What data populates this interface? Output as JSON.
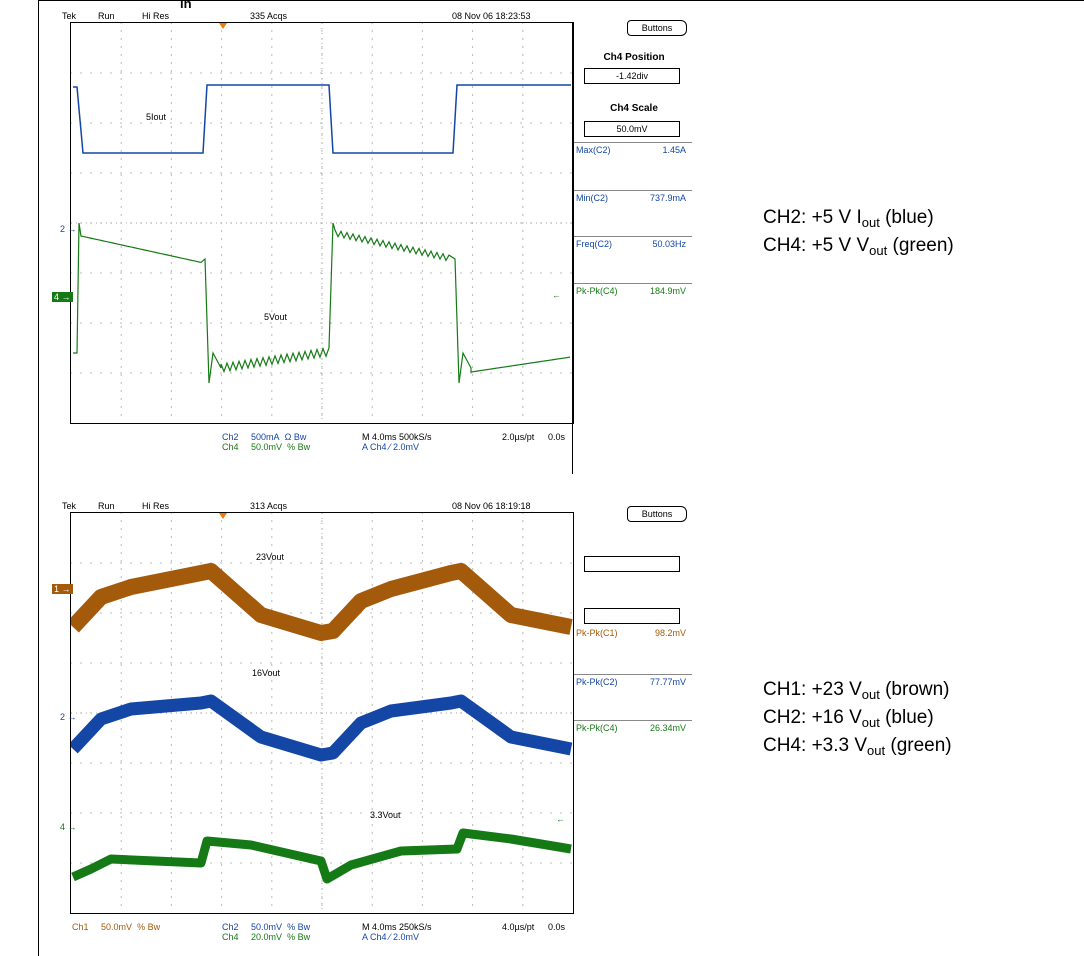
{
  "top_header_fragment": "in",
  "scope1": {
    "brand": "Tek",
    "mode": "Run",
    "acq_mode": "Hi Res",
    "acqs": "335 Acqs",
    "datetime": "08 Nov 06 18:23:53",
    "buttons_label": "Buttons",
    "ch4_position_title": "Ch4 Position",
    "ch4_position_value": "-1.42div",
    "ch4_scale_title": "Ch4 Scale",
    "ch4_scale_value": "50.0mV",
    "measurements": [
      {
        "label": "Max(C2)",
        "value": "1.45A",
        "color": "blue"
      },
      {
        "label": "Min(C2)",
        "value": "737.9mA",
        "color": "blue"
      },
      {
        "label": "Freq(C2)",
        "value": "50.03Hz",
        "color": "blue"
      },
      {
        "label": "Pk-Pk(C4)",
        "value": "184.9mV",
        "color": "green"
      }
    ],
    "trace_labels": {
      "iout": "5Iout",
      "vout": "5Vout"
    },
    "markers": {
      "ch2": "2",
      "ch4": "4"
    },
    "footer": {
      "ch2": "Ch2",
      "ch2_scale": "500mA",
      "ch2_sym": "Ω",
      "ch2_bw": "Bw",
      "ch4": "Ch4",
      "ch4_scale": "50.0mV",
      "ch4_sym": "%",
      "ch4_bw": "Bw",
      "timebase": "M 4.0ms 500kS/s",
      "trigger": "A  Ch4  ⁄  2.0mV",
      "pt": "2.0µs/pt",
      "offset": "0.0s"
    }
  },
  "scope2": {
    "brand": "Tek",
    "mode": "Run",
    "acq_mode": "Hi Res",
    "acqs": "313 Acqs",
    "datetime": "08 Nov 06 18:19:18",
    "buttons_label": "Buttons",
    "measurements": [
      {
        "label": "Pk-Pk(C1)",
        "value": "98.2mV",
        "color": "brown"
      },
      {
        "label": "Pk-Pk(C2)",
        "value": "77.77mV",
        "color": "blue"
      },
      {
        "label": "Pk-Pk(C4)",
        "value": "26.34mV",
        "color": "green"
      }
    ],
    "trace_labels": {
      "v23": "23Vout",
      "v16": "16Vout",
      "v33": "3.3Vout"
    },
    "markers": {
      "ch1": "1",
      "ch2": "2",
      "ch4": "4"
    },
    "footer": {
      "ch1": "Ch1",
      "ch1_scale": "50.0mV",
      "ch1_sym": "%",
      "ch1_bw": "Bw",
      "ch2": "Ch2",
      "ch2_scale": "50.0mV",
      "ch2_sym": "%",
      "ch2_bw": "Bw",
      "ch4": "Ch4",
      "ch4_scale": "20.0mV",
      "ch4_sym": "%",
      "ch4_bw": "Bw",
      "timebase": "M 4.0ms 250kS/s",
      "trigger": "A  Ch4  ⁄  2.0mV",
      "pt": "4.0µs/pt",
      "offset": "0.0s"
    }
  },
  "legend1": [
    {
      "prefix": "CH2: +5 V I",
      "sub": "out",
      "suffix": " (blue)"
    },
    {
      "prefix": "CH4: +5 V V",
      "sub": "out",
      "suffix": " (green)"
    }
  ],
  "legend2": [
    {
      "prefix": "CH1: +23 V",
      "sub": "out",
      "suffix": " (brown)"
    },
    {
      "prefix": "CH2: +16 V",
      "sub": "out",
      "suffix": " (blue)"
    },
    {
      "prefix": "CH4: +3.3 V",
      "sub": "out",
      "suffix": " (green)"
    }
  ],
  "colors": {
    "blue": "#1446a6",
    "green": "#157a15",
    "brown": "#a35a0b",
    "trigger": "#f07a10"
  }
}
